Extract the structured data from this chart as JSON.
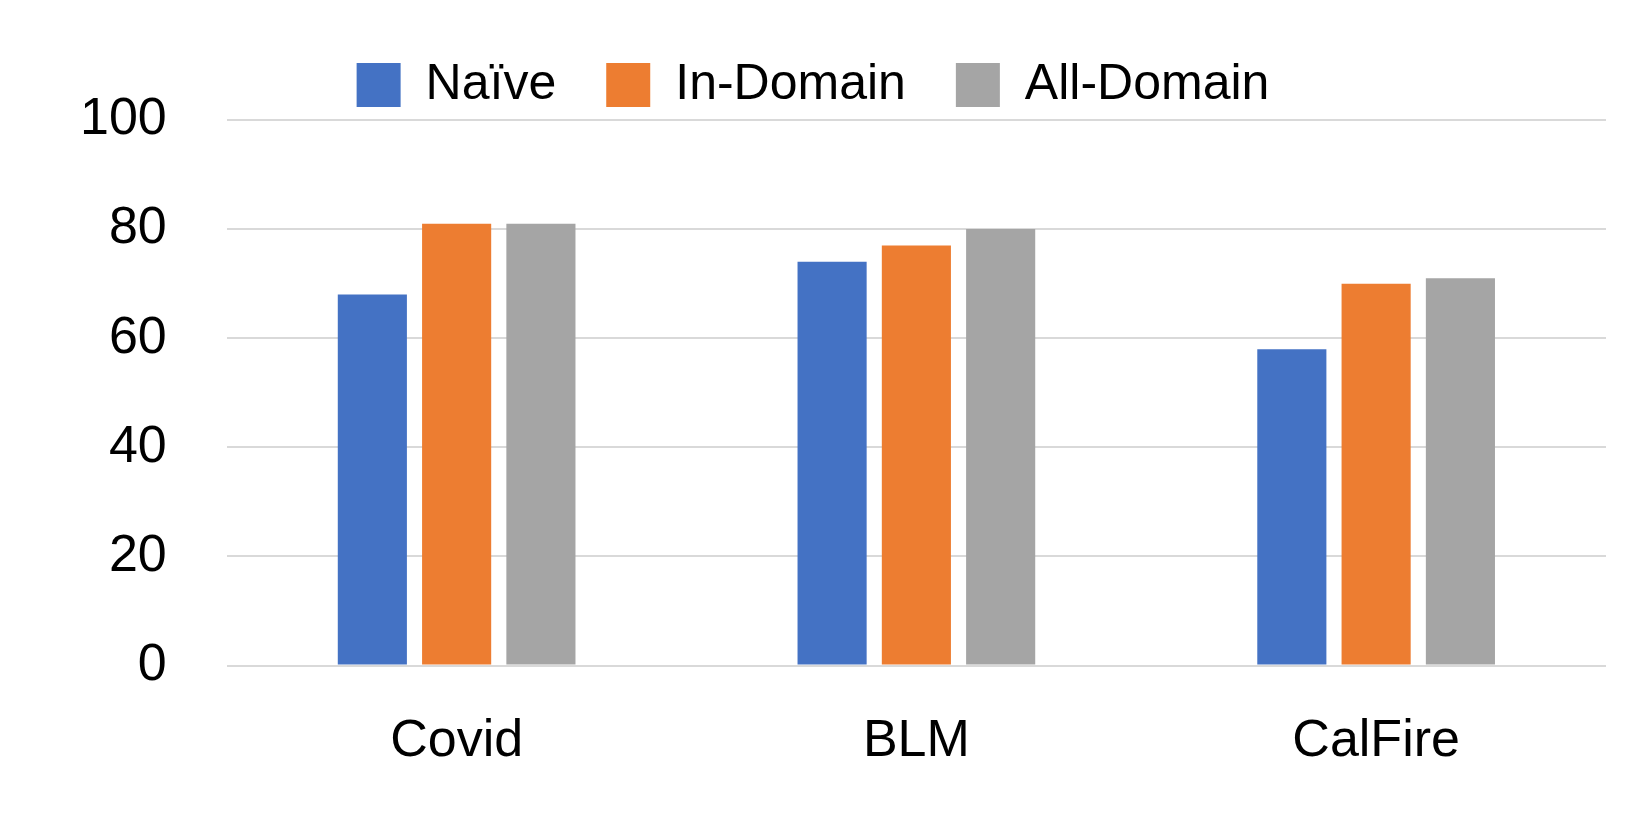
{
  "chart_data": {
    "type": "bar",
    "categories": [
      "Covid",
      "BLM",
      "CalFire"
    ],
    "series": [
      {
        "name": "Naïve",
        "color": "#4472c4",
        "values": [
          68,
          74,
          58
        ]
      },
      {
        "name": "In-Domain",
        "color": "#ed7d31",
        "values": [
          81,
          77,
          70
        ]
      },
      {
        "name": "All-Domain",
        "color": "#a5a5a5",
        "values": [
          81,
          80,
          71
        ]
      }
    ],
    "ylim": [
      0,
      100
    ],
    "yticks": [
      0,
      20,
      40,
      60,
      80,
      100
    ],
    "grid": "y",
    "legend": "top"
  }
}
